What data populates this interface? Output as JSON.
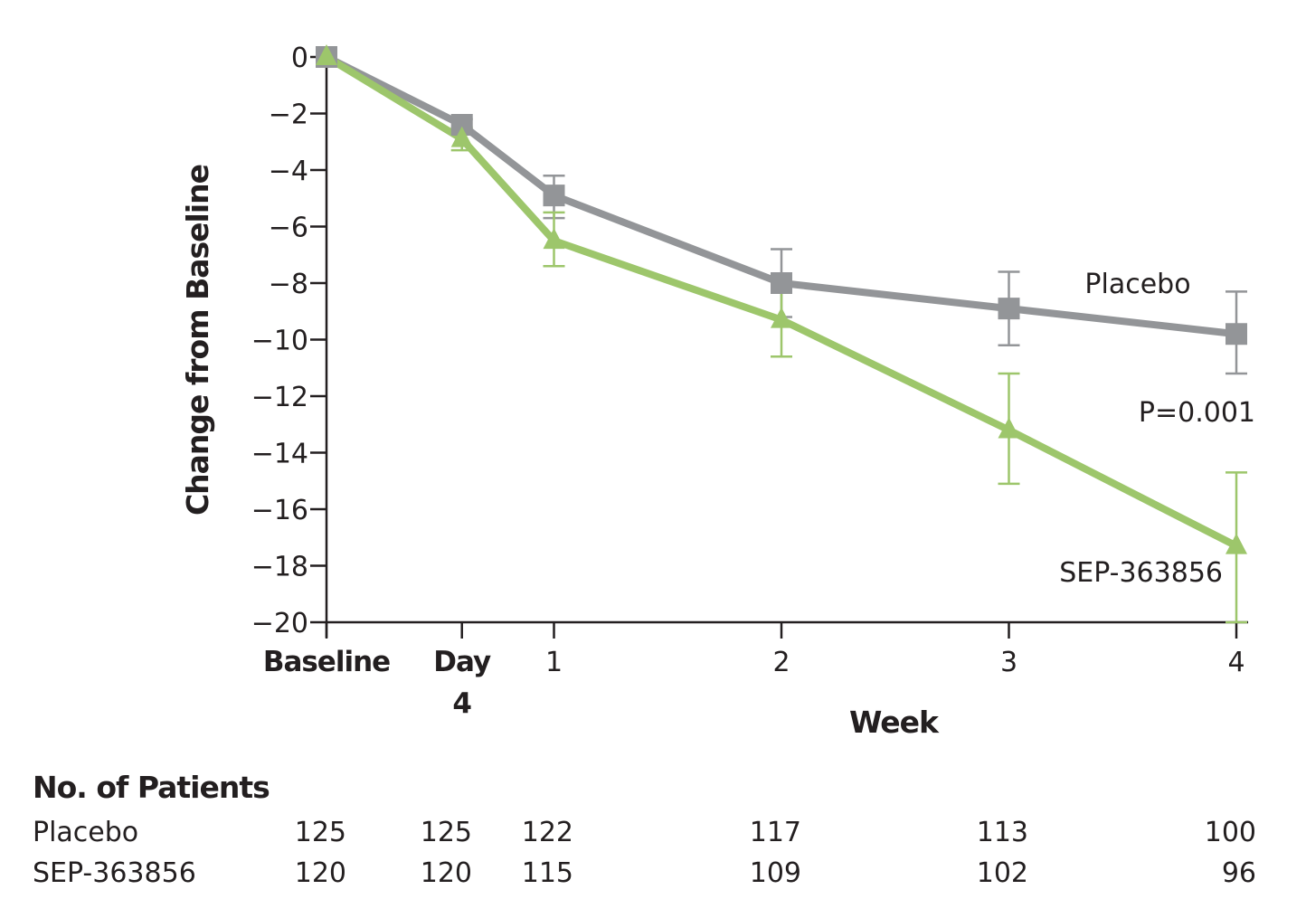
{
  "chart_data": {
    "type": "line",
    "title": "",
    "ylabel": "Change from Baseline",
    "xlabel": "Week",
    "ylim": [
      -20,
      0
    ],
    "yticks": [
      0,
      -2,
      -4,
      -6,
      -8,
      -10,
      -12,
      -14,
      -16,
      -18,
      -20
    ],
    "ytick_labels": [
      "0",
      "−2",
      "−4",
      "−6",
      "−8",
      "−10",
      "−12",
      "−14",
      "−16",
      "−18",
      "−20"
    ],
    "x_days": [
      0,
      4,
      7,
      14,
      21,
      28
    ],
    "x_tick_labels": [
      {
        "line1": "Baseline",
        "line2": "",
        "bold": true
      },
      {
        "line1": "Day",
        "line2": "4",
        "bold": true
      },
      {
        "line1": "1",
        "line2": "",
        "bold": false
      },
      {
        "line1": "2",
        "line2": "",
        "bold": false
      },
      {
        "line1": "3",
        "line2": "",
        "bold": false
      },
      {
        "line1": "4",
        "line2": "",
        "bold": false
      }
    ],
    "grid": false,
    "series": [
      {
        "name": "Placebo",
        "marker": "square",
        "color": "#939598",
        "values": [
          0,
          -2.4,
          -4.9,
          -8.0,
          -8.9,
          -9.8
        ],
        "err_low": [
          0,
          -2.7,
          -5.7,
          -9.2,
          -10.2,
          -11.2
        ],
        "err_high": [
          0,
          -2.2,
          -4.2,
          -6.8,
          -7.6,
          -8.3
        ]
      },
      {
        "name": "SEP-363856",
        "marker": "triangle",
        "color": "#9dc66b",
        "values": [
          0,
          -2.9,
          -6.5,
          -9.3,
          -13.2,
          -17.3
        ],
        "err_low": [
          0,
          -3.3,
          -7.4,
          -10.6,
          -15.1,
          -20.0
        ],
        "err_high": [
          0,
          -2.5,
          -5.5,
          -8.0,
          -11.2,
          -14.7
        ]
      }
    ],
    "annotations": [
      {
        "name": "placebo-label",
        "text": "Placebo"
      },
      {
        "name": "p-value-label",
        "text": "P=0.001"
      },
      {
        "name": "sep-label",
        "text": "SEP-363856"
      }
    ]
  },
  "patients_table": {
    "title": "No. of Patients",
    "rows": [
      {
        "label": "Placebo",
        "values": [
          "125",
          "125",
          "122",
          "117",
          "113",
          "100"
        ]
      },
      {
        "label": "SEP-363856",
        "values": [
          "120",
          "120",
          "115",
          "109",
          "102",
          "96"
        ]
      }
    ]
  }
}
